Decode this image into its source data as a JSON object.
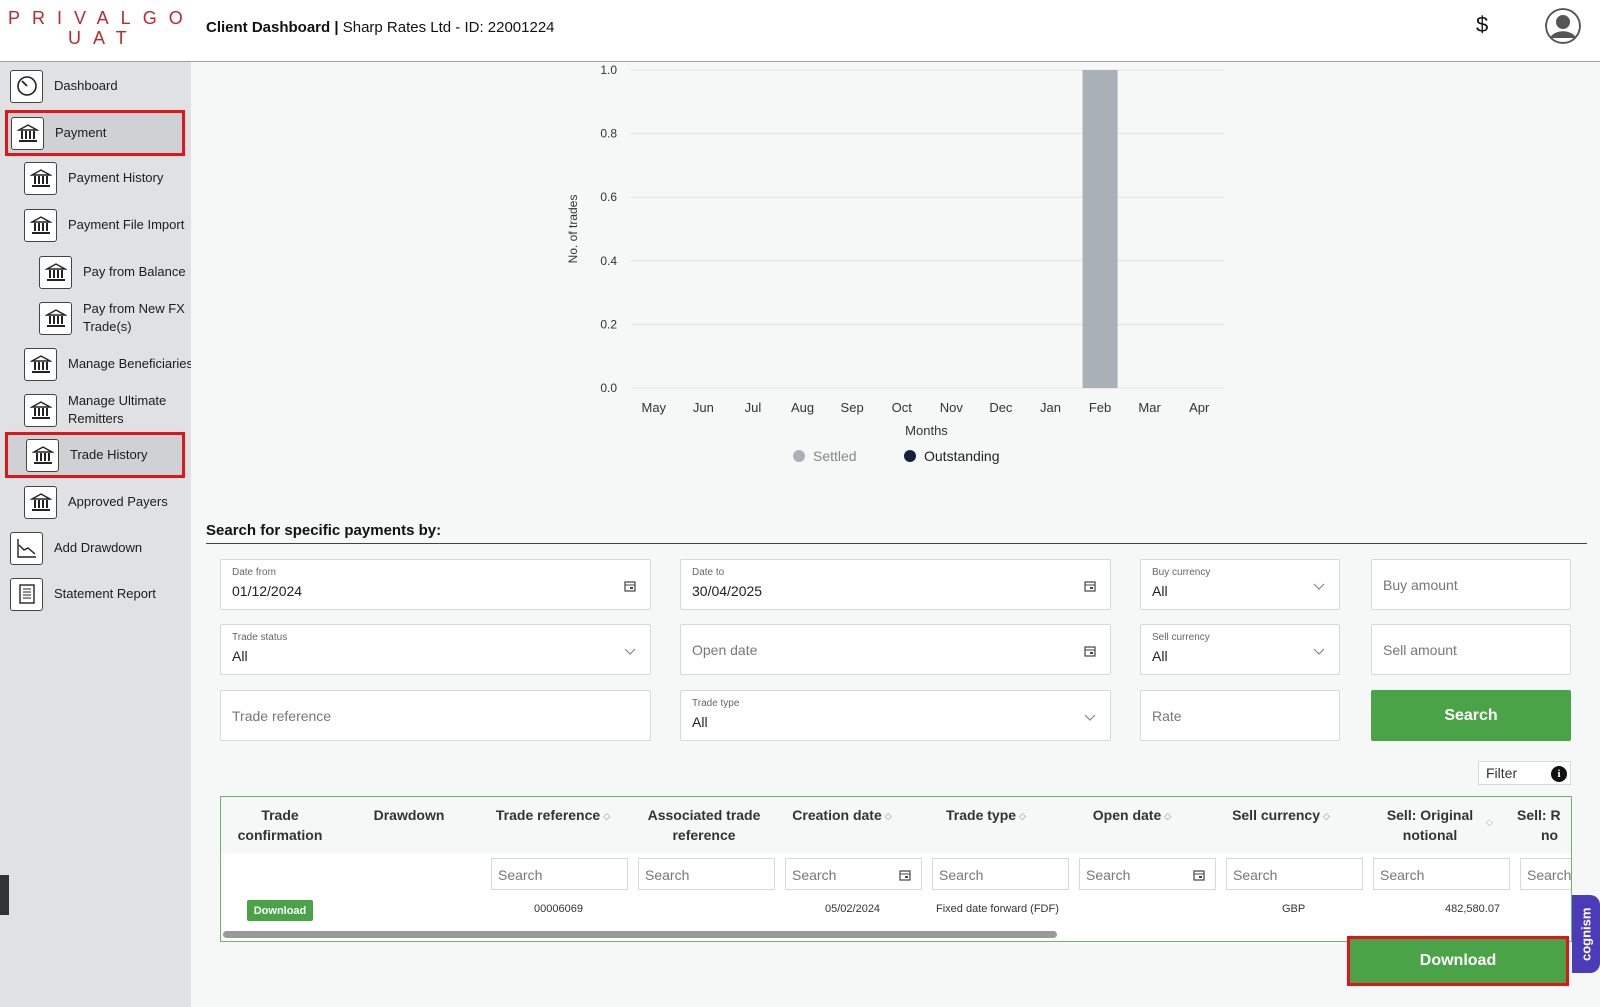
{
  "header": {
    "logo_line1": "PRIVALGO",
    "logo_line2": "UAT",
    "title_bold": "Client Dashboard |",
    "title_rest": "Sharp Rates Ltd - ID: 22001224",
    "currency_icon": "dollar-icon",
    "currency_symbol": "$",
    "avatar_icon": "user-avatar-icon"
  },
  "sidebar": {
    "items": [
      {
        "label": "Dashboard",
        "icon": "speedometer-icon"
      },
      {
        "label": "Payment",
        "icon": "bank-icon"
      },
      {
        "label": "Payment History",
        "icon": "bank-icon"
      },
      {
        "label": "Payment File Import",
        "icon": "bank-icon"
      },
      {
        "label": "Pay from Balance",
        "icon": "bank-icon"
      },
      {
        "label": "Pay from New FX Trade(s)",
        "icon": "bank-icon"
      },
      {
        "label": "Manage Beneficiaries",
        "icon": "bank-icon"
      },
      {
        "label": "Manage Ultimate Remitters",
        "icon": "bank-icon"
      },
      {
        "label": "Trade History",
        "icon": "bank-icon"
      },
      {
        "label": "Approved Payers",
        "icon": "bank-icon"
      },
      {
        "label": "Add Drawdown",
        "icon": "line-chart-icon"
      },
      {
        "label": "Statement Report",
        "icon": "document-icon"
      }
    ],
    "highlight_color": "#e2141b"
  },
  "chart_data": {
    "type": "bar",
    "categories": [
      "May",
      "Jun",
      "Jul",
      "Aug",
      "Sep",
      "Oct",
      "Nov",
      "Dec",
      "Jan",
      "Feb",
      "Mar",
      "Apr"
    ],
    "series": [
      {
        "name": "Settled",
        "color": "#a9b0b8",
        "values": [
          0,
          0,
          0,
          0,
          0,
          0,
          0,
          0,
          0,
          1,
          0,
          0
        ]
      },
      {
        "name": "Outstanding",
        "color": "#14213d",
        "values": [
          0,
          0,
          0,
          0,
          0,
          0,
          0,
          0,
          0,
          0,
          0,
          0
        ]
      }
    ],
    "xlabel": "Months",
    "ylabel": "No. of trades",
    "ylim": [
      0,
      1.0
    ],
    "yticks": [
      "0.0",
      "0.2",
      "0.4",
      "0.6",
      "0.8",
      "1.0"
    ],
    "grid": true,
    "legend": "bottom"
  },
  "search": {
    "title": "Search for specific payments by:",
    "date_from": {
      "label": "Date from",
      "value": "01/12/2024"
    },
    "date_to": {
      "label": "Date to",
      "value": "30/04/2025"
    },
    "buy_currency": {
      "label": "Buy currency",
      "value": "All"
    },
    "buy_amount": {
      "placeholder": "Buy amount"
    },
    "trade_status": {
      "label": "Trade status",
      "value": "All"
    },
    "open_date": {
      "placeholder": "Open date"
    },
    "sell_currency": {
      "label": "Sell currency",
      "value": "All"
    },
    "sell_amount": {
      "placeholder": "Sell amount"
    },
    "trade_reference": {
      "placeholder": "Trade reference"
    },
    "trade_type": {
      "label": "Trade type",
      "value": "All"
    },
    "rate": {
      "placeholder": "Rate"
    },
    "search_button": "Search"
  },
  "table": {
    "filter_label": "Filter",
    "info_symbol": "i",
    "columns": [
      {
        "line1": "Trade",
        "line2": "confirmation"
      },
      {
        "line1": "Drawdown",
        "line2": ""
      },
      {
        "line1": "Trade reference",
        "line2": ""
      },
      {
        "line1": "Associated trade",
        "line2": "reference"
      },
      {
        "line1": "Creation date",
        "line2": ""
      },
      {
        "line1": "Trade type",
        "line2": ""
      },
      {
        "line1": "Open date",
        "line2": ""
      },
      {
        "line1": "Sell currency",
        "line2": ""
      },
      {
        "line1": "Sell: Original",
        "line2": "notional"
      },
      {
        "line1": "Sell: R",
        "line2": "no"
      }
    ],
    "search_placeholder": "Search",
    "rows": [
      {
        "download_label": "Download",
        "trade_reference": "00006069",
        "creation_date": "05/02/2024",
        "trade_type": "Fixed date forward (FDF)",
        "sell_currency": "GBP",
        "sell_original_notional": "482,580.07"
      }
    ]
  },
  "download_button": "Download",
  "cognism_badge": "cognism",
  "colors": {
    "primary_green": "#4aa447",
    "brand_red": "#c0272d",
    "sidebar_bg": "#dfe1e2"
  }
}
